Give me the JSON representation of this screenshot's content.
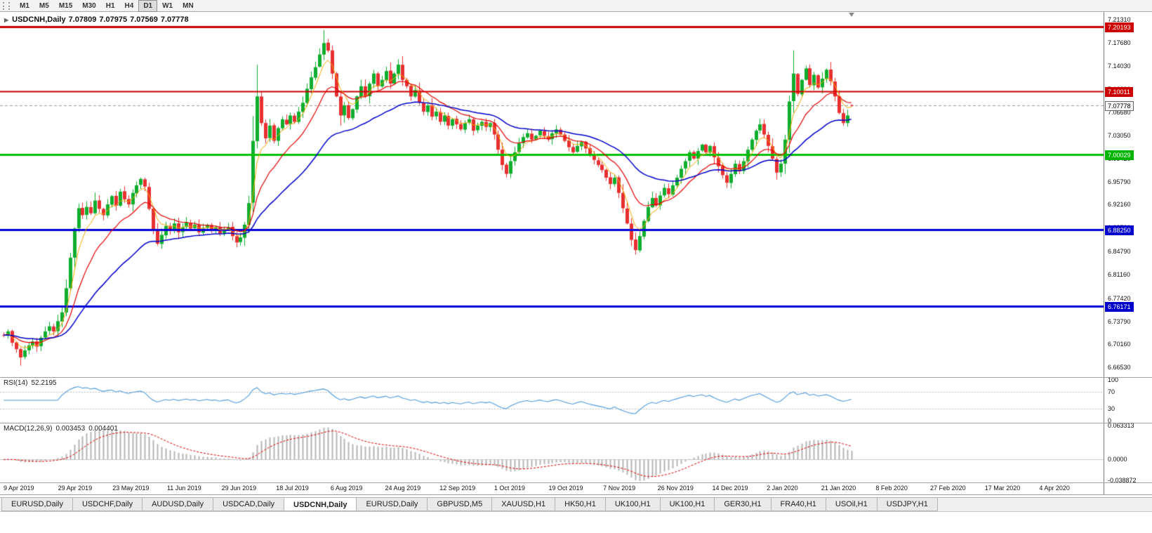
{
  "toolbar": {
    "timeframes": [
      "M1",
      "M5",
      "M15",
      "M30",
      "H1",
      "H4",
      "D1",
      "W1",
      "MN"
    ],
    "active": "D1"
  },
  "chart": {
    "symbol_period": "USDCNH,Daily",
    "open": "7.07809",
    "high": "7.07975",
    "low": "7.07569",
    "close": "7.07778",
    "collapse_arrow_icon": "▶"
  },
  "price_axis": {
    "ticks": [
      "7.21310",
      "7.17680",
      "7.14030",
      "7.10390",
      "7.06680",
      "7.03050",
      "6.99420",
      "6.95790",
      "6.92160",
      "6.88530",
      "6.84790",
      "6.81160",
      "6.77420",
      "6.73790",
      "6.70160",
      "6.66530"
    ],
    "boxes": [
      {
        "label": "7.20193",
        "bg": "#cc0000",
        "fg": "#ffffff",
        "border": "#cc0000"
      },
      {
        "label": "7.10011",
        "bg": "#cc0000",
        "fg": "#ffffff",
        "border": "#cc0000"
      },
      {
        "label": "7.07778",
        "bg": "#f5f5f5",
        "fg": "#000000",
        "border": "#666666"
      },
      {
        "label": "7.00029",
        "bg": "#00b400",
        "fg": "#ffffff",
        "border": "#00b400"
      },
      {
        "label": "6.88250",
        "bg": "#0000cc",
        "fg": "#ffffff",
        "border": "#0000cc"
      },
      {
        "label": "6.76171",
        "bg": "#0000cc",
        "fg": "#ffffff",
        "border": "#0000cc"
      }
    ]
  },
  "rsi": {
    "name": "RSI(14)",
    "value": "52.2195",
    "color": "#4d9ade",
    "ticks": [
      {
        "label": "100",
        "v": 100
      },
      {
        "label": "70",
        "v": 70
      },
      {
        "label": "30",
        "v": 30
      },
      {
        "label": "0",
        "v": 0
      }
    ],
    "levels": [
      70,
      30
    ]
  },
  "macd": {
    "name": "MACD(12,26,9)",
    "value_main": "0.003453",
    "value_signal": "0.004401",
    "ticks": [
      {
        "label": "0.063313",
        "v": 0.063313
      },
      {
        "label": "0.0000",
        "v": 0
      },
      {
        "label": "-0.038872",
        "v": -0.038872
      }
    ],
    "range": {
      "top": 0.063313,
      "bottom": -0.038872
    }
  },
  "date_axis": [
    "9 Apr 2019",
    "29 Apr 2019",
    "23 May 2019",
    "11 Jun 2019",
    "29 Jun 2019",
    "18 Jul 2019",
    "6 Aug 2019",
    "24 Aug 2019",
    "12 Sep 2019",
    "1 Oct 2019",
    "19 Oct 2019",
    "7 Nov 2019",
    "26 Nov 2019",
    "14 Dec 2019",
    "2 Jan 2020",
    "21 Jan 2020",
    "8 Feb 2020",
    "27 Feb 2020",
    "17 Mar 2020",
    "4 Apr 2020"
  ],
  "tabs": {
    "items": [
      "EURUSD,Daily",
      "USDCHF,Daily",
      "AUDUSD,Daily",
      "USDCAD,Daily",
      "USDCNH,Daily",
      "EURUSD,Daily",
      "GBPUSD,M5",
      "XAUUSD,H1",
      "HK50,H1",
      "UK100,H1",
      "UK100,H1",
      "GER30,H1",
      "FRA40,H1",
      "USOil,H1",
      "USDJPY,H1"
    ],
    "active_index": 4
  },
  "chart_data": {
    "type": "candlestick",
    "title": "USDCNH,Daily",
    "ylim": [
      6.65,
      7.225
    ],
    "price_range": {
      "top": 7.225,
      "bottom": 6.65
    },
    "current_price": 7.07778,
    "last_bar": {
      "open": 7.07809,
      "high": 7.07975,
      "low": 7.07569,
      "close": 7.07778
    },
    "closes": [
      6.716,
      6.722,
      6.704,
      6.694,
      6.681,
      6.692,
      6.7,
      6.706,
      6.698,
      6.712,
      6.722,
      6.73,
      6.722,
      6.738,
      6.752,
      6.79,
      6.838,
      6.884,
      6.916,
      6.905,
      6.918,
      6.908,
      6.928,
      6.915,
      6.905,
      6.922,
      6.935,
      6.92,
      6.942,
      6.93,
      6.922,
      6.94,
      6.952,
      6.962,
      6.95,
      6.915,
      6.882,
      6.86,
      6.874,
      6.888,
      6.88,
      6.892,
      6.878,
      6.886,
      6.894,
      6.884,
      6.89,
      6.878,
      6.884,
      6.89,
      6.882,
      6.886,
      6.876,
      6.882,
      6.886,
      6.872,
      6.862,
      6.87,
      6.89,
      6.924,
      7.022,
      7.092,
      7.05,
      7.026,
      7.046,
      7.022,
      7.042,
      7.056,
      7.048,
      7.062,
      7.052,
      7.068,
      7.082,
      7.104,
      7.122,
      7.138,
      7.158,
      7.176,
      7.164,
      7.128,
      7.092,
      7.062,
      7.078,
      7.058,
      7.072,
      7.092,
      7.108,
      7.092,
      7.112,
      7.128,
      7.108,
      7.118,
      7.132,
      7.112,
      7.128,
      7.142,
      7.118,
      7.108,
      7.092,
      7.102,
      7.082,
      7.068,
      7.078,
      7.06,
      7.068,
      7.052,
      7.062,
      7.046,
      7.056,
      7.048,
      7.04,
      7.05,
      7.056,
      7.038,
      7.046,
      7.052,
      7.044,
      7.05,
      7.032,
      7.008,
      6.984,
      6.97,
      6.99,
      7.004,
      7.018,
      7.028,
      7.034,
      7.024,
      7.03,
      7.038,
      7.03,
      7.024,
      7.034,
      7.04,
      7.032,
      7.022,
      7.012,
      7.004,
      7.014,
      7.02,
      7.01,
      7.0,
      6.992,
      6.984,
      6.976,
      6.964,
      6.954,
      6.964,
      6.94,
      6.916,
      6.892,
      6.866,
      6.85,
      6.872,
      6.896,
      6.918,
      6.932,
      6.92,
      6.936,
      6.948,
      6.938,
      6.952,
      6.964,
      6.978,
      6.99,
      7.004,
      6.994,
      7.006,
      7.016,
      7.004,
      7.014,
      6.996,
      6.982,
      6.968,
      6.956,
      6.97,
      6.986,
      6.974,
      6.99,
      7.008,
      7.024,
      7.038,
      7.048,
      7.032,
      7.014,
      6.994,
      6.972,
      6.986,
      7.024,
      7.084,
      7.128,
      7.096,
      7.118,
      7.136,
      7.11,
      7.126,
      7.106,
      7.12,
      7.134,
      7.116,
      7.092,
      7.066,
      7.05,
      7.062,
      7.07778
    ],
    "wick_overrides": {
      "4": {
        "low": 6.668
      },
      "61": {
        "high": 7.1419
      },
      "77": {
        "high": 7.1965
      },
      "152": {
        "low": 6.843
      },
      "190": {
        "high": 7.1645
      }
    },
    "levels": [
      {
        "price": 7.20193,
        "color": "#cc0000",
        "width": 3
      },
      {
        "price": 7.10011,
        "color": "#cc0000",
        "width": 2
      },
      {
        "price": 7.00029,
        "color": "#00c000",
        "width": 3
      },
      {
        "price": 6.8825,
        "color": "#0000d9",
        "width": 3
      },
      {
        "price": 6.76171,
        "color": "#0000d9",
        "width": 3
      }
    ],
    "moving_averages": [
      {
        "period": 5,
        "color": "#f5a800",
        "width": 1
      },
      {
        "period": 13,
        "color": "#e60000",
        "width": 1.2
      },
      {
        "period": 34,
        "color": "#0000cc",
        "width": 1.5
      }
    ],
    "bull_color": "#0fae2e",
    "bear_color": "#e93030",
    "rsi_period": 14,
    "macd_params": [
      12,
      26,
      9
    ]
  }
}
